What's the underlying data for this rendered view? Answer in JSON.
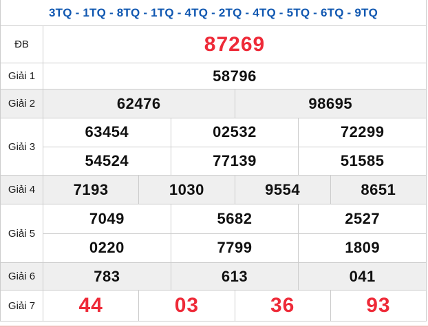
{
  "header": {
    "title": "3TQ - 1TQ - 8TQ - 1TQ - 4TQ - 2TQ - 4TQ - 5TQ - 6TQ - 9TQ"
  },
  "colors": {
    "accent-blue": "#1158b1",
    "number-red": "#ee2a38",
    "number-black": "#111111",
    "row-shade": "#efefef",
    "border": "#cccccc",
    "bottom-line-pink": "#f3bcbc"
  },
  "prizes": [
    {
      "label": "ĐB",
      "numbers": [
        [
          "87269"
        ]
      ]
    },
    {
      "label": "Giải 1",
      "numbers": [
        [
          "58796"
        ]
      ]
    },
    {
      "label": "Giải 2",
      "numbers": [
        [
          "62476",
          "98695"
        ]
      ]
    },
    {
      "label": "Giải 3",
      "numbers": [
        [
          "63454",
          "02532",
          "72299"
        ],
        [
          "54524",
          "77139",
          "51585"
        ]
      ]
    },
    {
      "label": "Giải 4",
      "numbers": [
        [
          "7193",
          "1030",
          "9554",
          "8651"
        ]
      ]
    },
    {
      "label": "Giải 5",
      "numbers": [
        [
          "7049",
          "5682",
          "2527"
        ],
        [
          "0220",
          "7799",
          "1809"
        ]
      ]
    },
    {
      "label": "Giải 6",
      "numbers": [
        [
          "783",
          "613",
          "041"
        ]
      ]
    },
    {
      "label": "Giải 7",
      "numbers": [
        [
          "44",
          "03",
          "36",
          "93"
        ]
      ]
    }
  ]
}
